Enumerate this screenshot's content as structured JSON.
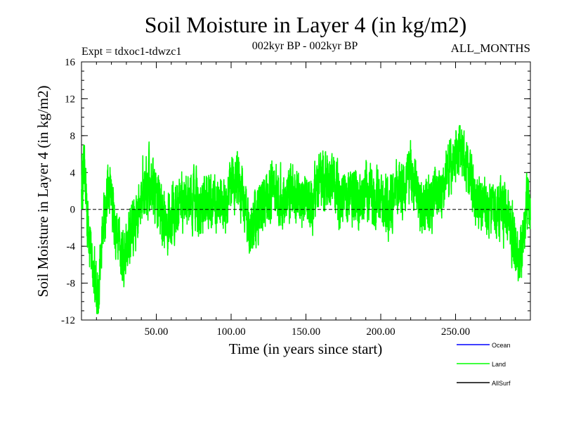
{
  "chart_data": {
    "type": "line",
    "title": "Soil Moisture in Layer 4 (in kg/m2)",
    "subtitle_left": "Expt = tdxoc1-tdwzc1",
    "subtitle_center": "002kyr BP - 002kyr BP",
    "subtitle_right": "ALL_MONTHS",
    "xlabel": "Time (in years since start)",
    "ylabel": "Soil Moisture in Layer 4 (in kg/m2)",
    "xlim": [
      0,
      300
    ],
    "ylim": [
      -12,
      16
    ],
    "xticks": [
      50,
      100,
      150,
      200,
      250
    ],
    "xtick_labels": [
      "50.00",
      "100.00",
      "150.00",
      "200.00",
      "250.00"
    ],
    "yticks": [
      -12,
      -8,
      -4,
      0,
      4,
      8,
      12,
      16
    ],
    "ytick_labels": [
      "-12",
      "-8",
      "-4",
      "0",
      "4",
      "8",
      "12",
      "16"
    ],
    "zero_line": true,
    "legend": [
      {
        "name": "Ocean",
        "color": "#0000ff"
      },
      {
        "name": "Land",
        "color": "#00ff00"
      },
      {
        "name": "AllSurf",
        "color": "#000000"
      }
    ],
    "series": [
      {
        "name": "Land",
        "color": "#00ff00",
        "x_start": 0,
        "x_end": 300,
        "anchors_x": [
          0,
          2,
          4,
          7,
          9,
          11,
          14,
          17,
          20,
          22,
          25,
          27,
          30,
          33,
          36,
          40,
          45,
          50,
          54,
          58,
          62,
          66,
          70,
          75,
          80,
          85,
          90,
          95,
          100,
          105,
          110,
          113,
          116,
          120,
          125,
          130,
          135,
          140,
          145,
          150,
          155,
          160,
          165,
          170,
          175,
          180,
          185,
          190,
          195,
          200,
          205,
          210,
          215,
          220,
          225,
          230,
          235,
          240,
          245,
          250,
          253,
          256,
          260,
          265,
          270,
          275,
          280,
          285,
          290,
          294,
          296,
          298,
          300
        ],
        "anchors_y": [
          2,
          4,
          -2,
          -5,
          -8,
          -10,
          -3,
          1,
          2,
          -2,
          -4,
          -6,
          -5,
          -2,
          -1,
          2,
          3,
          2,
          -1,
          -2,
          0,
          1,
          0,
          1,
          0,
          1,
          1,
          0,
          2,
          3,
          0,
          -3,
          -1,
          0,
          1,
          2,
          1,
          2,
          1,
          1,
          1,
          3,
          3,
          2,
          1,
          1,
          1,
          2,
          1,
          1,
          0,
          2,
          2,
          4,
          1,
          0,
          1,
          2,
          4,
          6,
          7,
          6,
          3,
          1,
          1,
          0,
          0,
          -1,
          -4,
          -5,
          -2,
          1,
          0
        ],
        "noise_amplitude": 2.6,
        "points_per_year": 12,
        "seed": 20240613
      }
    ]
  }
}
